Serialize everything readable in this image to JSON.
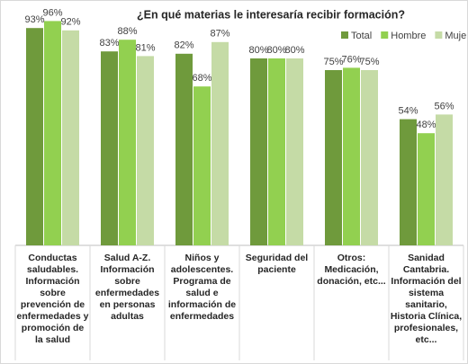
{
  "chart_data": {
    "type": "bar",
    "title": "¿En qué materias le interesaría recibir formación?",
    "categories": [
      "Conductas saludables. Información sobre prevención de enfermedades y promoción de la salud",
      "Salud A-Z. Información sobre enfermedades en personas adultas",
      "Niños y adolescentes. Programa de salud e información de enfermedades",
      "Seguridad del paciente",
      "Otros: Medicación, donación, etc...",
      "Sanidad Cantabria. Información del sistema sanitario, Historia Clínica, profesionales, etc..."
    ],
    "series": [
      {
        "name": "Total",
        "color": "#6f9a3c",
        "values": [
          93,
          83,
          82,
          80,
          75,
          54
        ],
        "value_labels": [
          "93%",
          "83%",
          "82%",
          "80%",
          "75%",
          "54%"
        ]
      },
      {
        "name": "Hombre",
        "color": "#92d050",
        "values": [
          96,
          88,
          68,
          80,
          76,
          48
        ],
        "value_labels": [
          "96%",
          "88%",
          "68%",
          "80%",
          "76%",
          "48%"
        ]
      },
      {
        "name": "Mujer",
        "color": "#c5dba6",
        "values": [
          92,
          81,
          87,
          80,
          75,
          56
        ],
        "value_labels": [
          "92%",
          "81%",
          "87%",
          "80%",
          "75%",
          "56%"
        ]
      }
    ],
    "legend": "top-right"
  }
}
